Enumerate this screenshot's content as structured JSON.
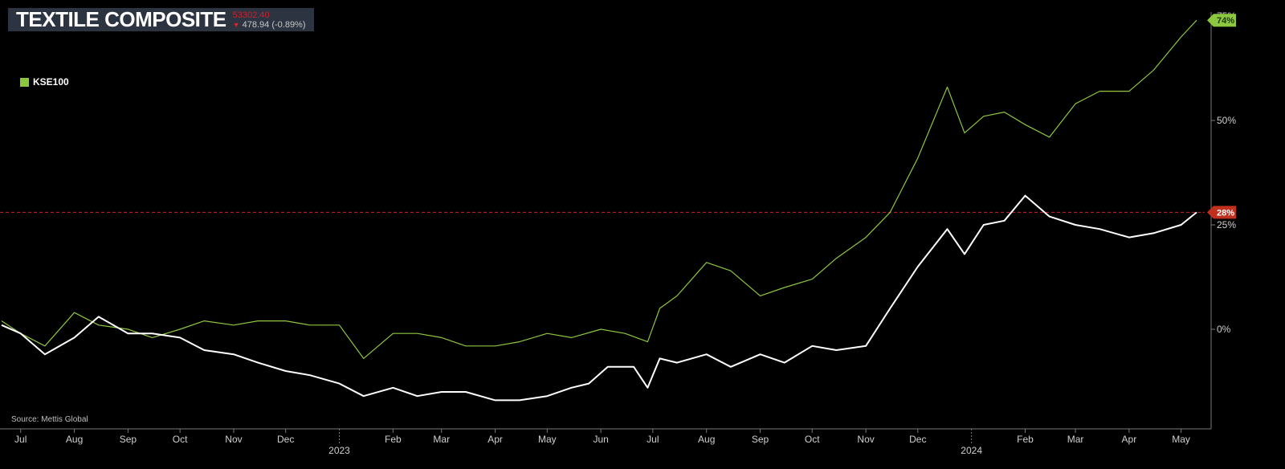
{
  "header": {
    "title": "TEXTILE COMPOSITE",
    "price": "53302.40",
    "change": "478.94 (-0.89%)",
    "change_direction": "down",
    "price_color": "#d0202a"
  },
  "source": "Source: Mettis Global",
  "colors": {
    "background": "#000000",
    "kse100": "#8dc63f",
    "composite": "#ffffff",
    "reference_line": "#d0202a",
    "header_bg": "#2b3440"
  },
  "chart_data": {
    "type": "line",
    "title": "TEXTILE COMPOSITE",
    "x_ticks": [
      "Jul",
      "Aug",
      "Sep",
      "Oct",
      "Nov",
      "Dec",
      "Feb",
      "Mar",
      "Apr",
      "May",
      "Jun",
      "Jul",
      "Aug",
      "Sep",
      "Oct",
      "Nov",
      "Dec",
      "Feb",
      "Mar",
      "Apr",
      "May"
    ],
    "year_labels": [
      "2023",
      "2024"
    ],
    "y_ticks": [
      "0%",
      "25%",
      "50%",
      "75%"
    ],
    "ylim": [
      -23,
      77
    ],
    "grid": false,
    "legend": {
      "position": "top-left",
      "entries": [
        "KSE100"
      ]
    },
    "reference_line": {
      "value": 28,
      "label": "28%",
      "style": "dashed"
    },
    "end_labels": [
      {
        "series": "KSE100",
        "text": "74%"
      },
      {
        "series": "Textile Composite",
        "text": "28%"
      }
    ],
    "series": [
      {
        "name": "KSE100",
        "color": "#8dc63f",
        "x": [
          "2022-06-20",
          "2022-07-01",
          "2022-07-15",
          "2022-08-01",
          "2022-08-15",
          "2022-09-01",
          "2022-09-15",
          "2022-10-01",
          "2022-10-15",
          "2022-11-01",
          "2022-11-15",
          "2022-12-01",
          "2022-12-15",
          "2023-01-01",
          "2023-01-15",
          "2023-02-01",
          "2023-02-15",
          "2023-03-01",
          "2023-03-15",
          "2023-04-01",
          "2023-04-15",
          "2023-05-01",
          "2023-05-15",
          "2023-06-01",
          "2023-06-15",
          "2023-06-28",
          "2023-07-05",
          "2023-07-15",
          "2023-08-01",
          "2023-08-15",
          "2023-09-01",
          "2023-09-15",
          "2023-10-01",
          "2023-10-15",
          "2023-11-01",
          "2023-11-15",
          "2023-12-01",
          "2023-12-18",
          "2023-12-28",
          "2024-01-08",
          "2024-01-20",
          "2024-02-01",
          "2024-02-15",
          "2024-03-01",
          "2024-03-15",
          "2024-04-01",
          "2024-04-15",
          "2024-05-01",
          "2024-05-10"
        ],
        "values": [
          2,
          -1,
          -4,
          4,
          1,
          0,
          -2,
          0,
          2,
          1,
          2,
          2,
          1,
          1,
          -7,
          -1,
          -1,
          -2,
          -4,
          -4,
          -3,
          -1,
          -2,
          0,
          -1,
          -3,
          5,
          8,
          16,
          14,
          8,
          10,
          12,
          17,
          22,
          28,
          41,
          58,
          47,
          51,
          52,
          49,
          46,
          54,
          57,
          57,
          62,
          70,
          74
        ]
      },
      {
        "name": "Textile Composite",
        "color": "#ffffff",
        "x": [
          "2022-06-20",
          "2022-07-01",
          "2022-07-15",
          "2022-08-01",
          "2022-08-15",
          "2022-09-01",
          "2022-09-15",
          "2022-10-01",
          "2022-10-15",
          "2022-11-01",
          "2022-11-15",
          "2022-12-01",
          "2022-12-15",
          "2023-01-01",
          "2023-01-15",
          "2023-02-01",
          "2023-02-15",
          "2023-03-01",
          "2023-03-15",
          "2023-04-01",
          "2023-04-15",
          "2023-05-01",
          "2023-05-15",
          "2023-05-25",
          "2023-06-05",
          "2023-06-20",
          "2023-06-28",
          "2023-07-05",
          "2023-07-15",
          "2023-08-01",
          "2023-08-15",
          "2023-09-01",
          "2023-09-15",
          "2023-10-01",
          "2023-10-15",
          "2023-11-01",
          "2023-11-15",
          "2023-12-01",
          "2023-12-18",
          "2023-12-28",
          "2024-01-08",
          "2024-01-20",
          "2024-02-01",
          "2024-02-15",
          "2024-03-01",
          "2024-03-15",
          "2024-04-01",
          "2024-04-15",
          "2024-05-01",
          "2024-05-10"
        ],
        "values": [
          1,
          -1,
          -6,
          -2,
          3,
          -1,
          -1,
          -2,
          -5,
          -6,
          -8,
          -10,
          -11,
          -13,
          -16,
          -14,
          -16,
          -15,
          -15,
          -17,
          -17,
          -16,
          -14,
          -13,
          -9,
          -9,
          -14,
          -7,
          -8,
          -6,
          -9,
          -6,
          -8,
          -4,
          -5,
          -4,
          5,
          15,
          24,
          18,
          25,
          26,
          32,
          27,
          25,
          24,
          22,
          23,
          25,
          28
        ]
      }
    ]
  }
}
